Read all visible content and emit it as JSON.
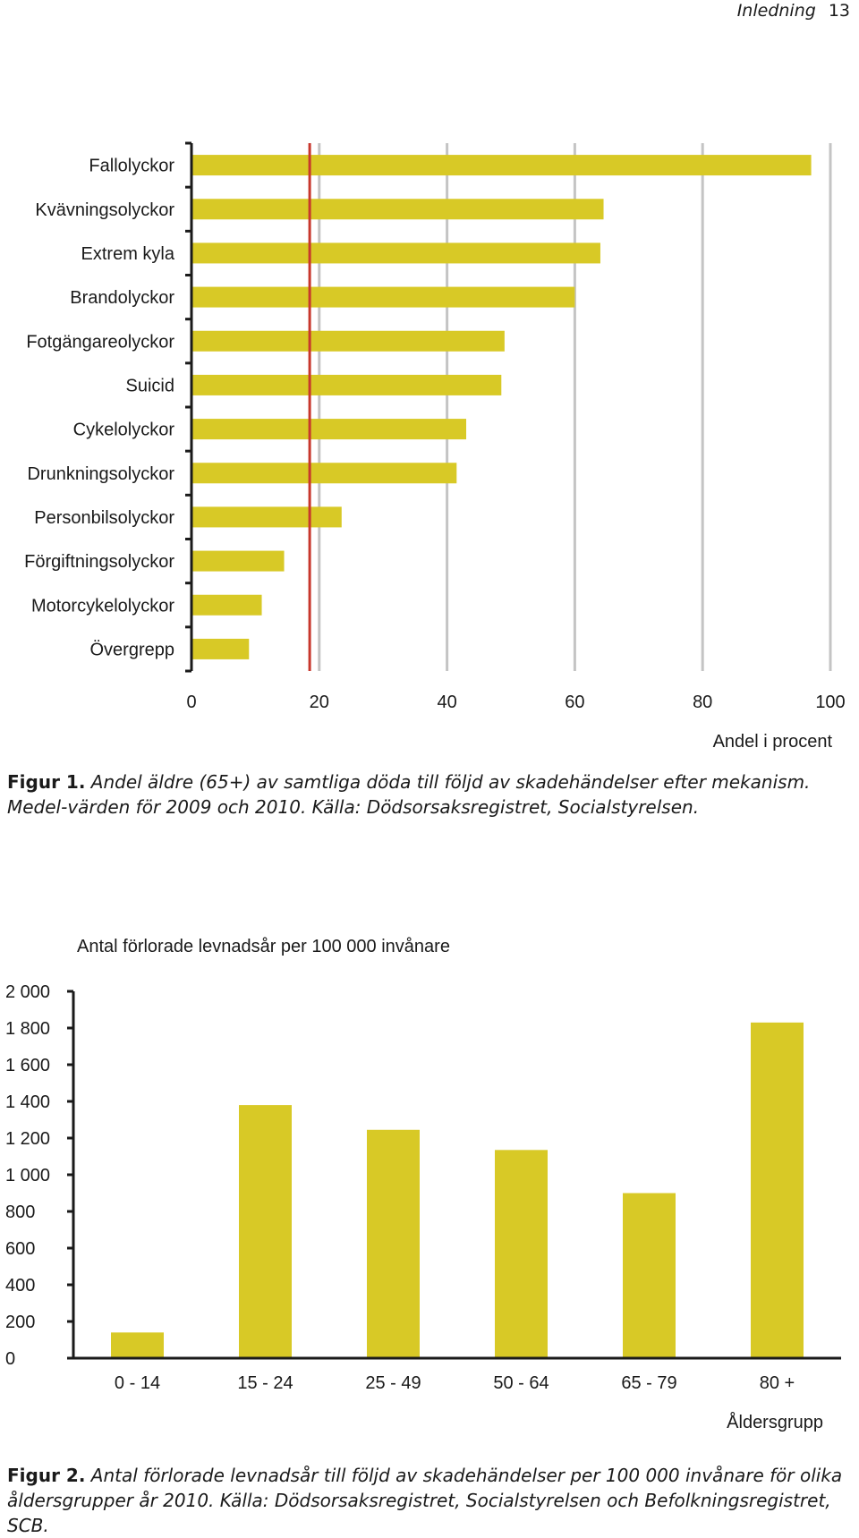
{
  "header": {
    "section": "Inledning",
    "page": "13"
  },
  "chart_data": [
    {
      "type": "bar",
      "orientation": "horizontal",
      "categories": [
        "Fallolyckor",
        "Kvävningsolyckor",
        "Extrem kyla",
        "Brandolyckor",
        "Fotgängareolyckor",
        "Suicid",
        "Cykelolyckor",
        "Drunkningsolyckor",
        "Personbilsolyckor",
        "Förgiftningsolyckor",
        "Motorcykelolyckor",
        "Övergrepp"
      ],
      "values": [
        97,
        64.5,
        64,
        60,
        49,
        48.5,
        43,
        41.5,
        23.5,
        14.5,
        11,
        9
      ],
      "reference_line": 18.5,
      "xlim": [
        0,
        100
      ],
      "xticks": [
        "0",
        "20",
        "40",
        "60",
        "80",
        "100"
      ],
      "xlabel": "Andel i procent",
      "grid": "vertical",
      "bar_color": "#d8c926",
      "reference_color": "#c8372d"
    },
    {
      "type": "bar",
      "categories": [
        "0 - 14",
        "15 - 24",
        "25 - 49",
        "50 - 64",
        "65 - 79",
        "80 +"
      ],
      "values": [
        140,
        1380,
        1245,
        1135,
        900,
        1830
      ],
      "ylim": [
        0,
        2000
      ],
      "yticks": [
        "0",
        "200",
        "400",
        "600",
        "800",
        "1 000",
        "1 200",
        "1 400",
        "1 600",
        "1 800",
        "2 000"
      ],
      "ylabel": "Antal förlorade levnadsår per 100 000 invånare",
      "xlabel": "Åldersgrupp",
      "grid": "none",
      "bar_color": "#d8c926"
    }
  ],
  "captions": {
    "fig1_label": "Figur 1.",
    "fig1_text": " Andel äldre (65+) av samtliga döda till följd av skadehändelser efter mekanism. Medel-värden för 2009 och 2010. Källa: Dödsorsaksregistret, Socialstyrelsen.",
    "fig2_label": "Figur 2.",
    "fig2_text": " Antal förlorade levnadsår till följd av skadehändelser per 100 000 invånare för olika åldersgrupper år 2010. Källa: Dödsorsaksregistret, Socialstyrelsen och Befolkningsregistret, SCB."
  }
}
